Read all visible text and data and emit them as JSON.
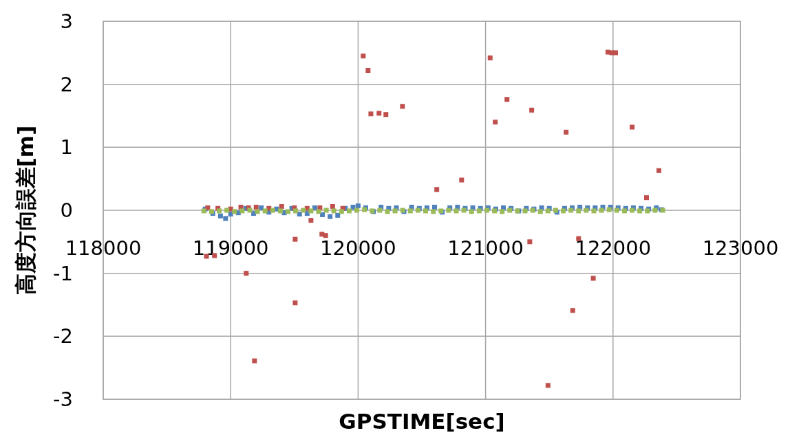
{
  "chart_data": {
    "type": "scatter",
    "xlabel": "GPSTIME[sec]",
    "ylabel": "高度方向誤差[m]",
    "xlim": [
      118000,
      123000
    ],
    "xticks": [
      118000,
      119000,
      120000,
      121000,
      122000,
      123000
    ],
    "ylim": [
      -3,
      3
    ],
    "yticks": [
      -3,
      -2,
      -1,
      0,
      1,
      2,
      3
    ],
    "grid": true,
    "marker": "square",
    "series": [
      {
        "color": "#4f81bd",
        "x": [
          118800,
          118860,
          118920,
          118960,
          119000,
          119060,
          119120,
          119180,
          119240,
          119300,
          119360,
          119420,
          119480,
          119540,
          119600,
          119660,
          119720,
          119780,
          119840,
          119900,
          119960,
          120000,
          120060,
          120120,
          120180,
          120240,
          120300,
          120360,
          120420,
          120480,
          120540,
          120600,
          120660,
          120720,
          120780,
          120840,
          120900,
          120960,
          121020,
          121080,
          121140,
          121200,
          121260,
          121320,
          121380,
          121440,
          121500,
          121560,
          121620,
          121680,
          121740,
          121800,
          121860,
          121920,
          121980,
          122040,
          122100,
          122160,
          122220,
          122280,
          122340,
          122380
        ],
        "values": [
          0.02,
          -0.05,
          -0.09,
          -0.13,
          -0.06,
          -0.04,
          0.03,
          -0.05,
          0.04,
          -0.03,
          0.02,
          -0.04,
          0.03,
          -0.06,
          -0.05,
          0.04,
          -0.07,
          -0.1,
          -0.08,
          0.03,
          0.05,
          0.07,
          0.04,
          -0.02,
          0.05,
          0.03,
          0.04,
          -0.02,
          0.05,
          0.03,
          0.04,
          0.05,
          -0.03,
          0.04,
          0.05,
          0.03,
          0.04,
          0.03,
          0.04,
          0.02,
          0.04,
          0.03,
          -0.01,
          0.03,
          0.02,
          0.04,
          0.03,
          -0.03,
          0.03,
          0.04,
          0.05,
          0.04,
          0.04,
          0.05,
          0.05,
          0.04,
          0.03,
          0.04,
          0.03,
          0.02,
          0.04,
          0.01
        ]
      },
      {
        "color": "#c0504d",
        "x": [
          118820,
          118900,
          119000,
          119080,
          119140,
          119200,
          119300,
          119400,
          119500,
          119600,
          119700,
          119800,
          119880,
          120040,
          120078,
          120100,
          120164,
          120218,
          120348,
          120617,
          120812,
          121036,
          121076,
          121168,
          121362,
          121632,
          121960,
          121990,
          122020,
          122150,
          122263,
          122360,
          118810,
          118873,
          119122,
          119187,
          119506,
          119506,
          119630,
          119716,
          119745,
          121347,
          121730,
          121845,
          121684,
          121490
        ],
        "values": [
          0.04,
          0.03,
          0.02,
          0.05,
          0.04,
          0.05,
          0.03,
          0.06,
          0.04,
          0.03,
          0.04,
          0.06,
          0.03,
          2.45,
          2.22,
          1.53,
          1.54,
          1.52,
          1.65,
          0.33,
          0.48,
          2.42,
          1.4,
          1.76,
          1.59,
          1.24,
          2.51,
          2.5,
          2.5,
          1.32,
          0.2,
          0.63,
          -0.73,
          -0.72,
          -1.0,
          -2.39,
          -1.47,
          -0.46,
          -0.16,
          -0.38,
          -0.4,
          -0.5,
          -0.45,
          -1.08,
          -1.59,
          -2.78
        ]
      },
      {
        "color": "#9bbb59",
        "x": [
          118790,
          118850,
          118910,
          118970,
          119030,
          119090,
          119150,
          119210,
          119270,
          119330,
          119390,
          119450,
          119510,
          119570,
          119630,
          119690,
          119750,
          119810,
          119870,
          119930,
          119990,
          120050,
          120110,
          120170,
          120230,
          120290,
          120350,
          120410,
          120470,
          120530,
          120590,
          120650,
          120710,
          120770,
          120830,
          120890,
          120950,
          121010,
          121070,
          121130,
          121190,
          121250,
          121310,
          121370,
          121430,
          121490,
          121550,
          121610,
          121670,
          121730,
          121790,
          121850,
          121910,
          121970,
          122030,
          122090,
          122150,
          122210,
          122270,
          122330,
          122390
        ],
        "values": [
          -0.01,
          -0.02,
          -0.01,
          0.0,
          -0.02,
          -0.01,
          0.0,
          -0.02,
          -0.01,
          0.0,
          -0.01,
          -0.02,
          -0.01,
          0.0,
          -0.01,
          -0.02,
          0.0,
          -0.01,
          -0.02,
          -0.01,
          0.0,
          0.01,
          -0.01,
          0.0,
          -0.02,
          -0.01,
          0.0,
          -0.01,
          0.0,
          -0.01,
          -0.02,
          -0.01,
          0.0,
          -0.01,
          0.0,
          -0.02,
          -0.01,
          0.0,
          -0.01,
          -0.02,
          0.0,
          -0.01,
          -0.01,
          0.0,
          -0.02,
          -0.01,
          0.0,
          -0.01,
          0.0,
          -0.01,
          0.0,
          -0.01,
          0.0,
          0.01,
          0.0,
          -0.01,
          0.0,
          -0.01,
          -0.01,
          0.0,
          0.0
        ]
      }
    ]
  }
}
